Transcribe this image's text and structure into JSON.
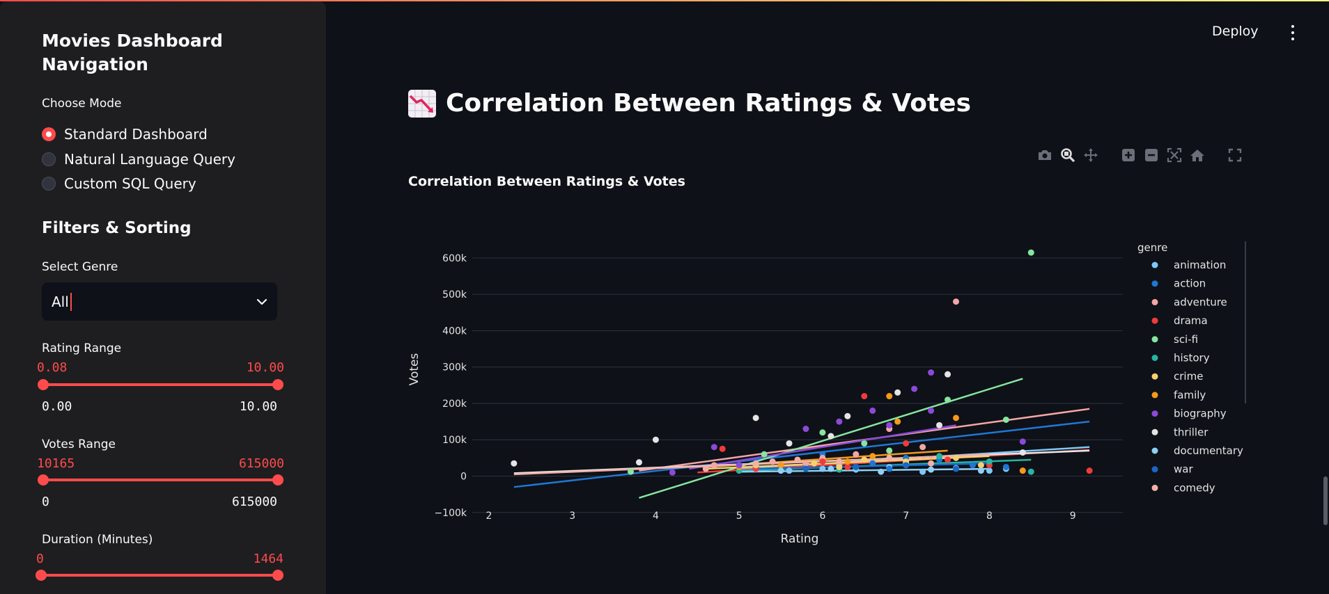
{
  "sidebar": {
    "title": "Movies Dashboard Navigation",
    "mode_label": "Choose Mode",
    "modes": [
      {
        "label": "Standard Dashboard",
        "checked": true
      },
      {
        "label": "Natural Language Query",
        "checked": false
      },
      {
        "label": "Custom SQL Query",
        "checked": false
      }
    ],
    "filters_heading": "Filters & Sorting",
    "genre_label": "Select Genre",
    "genre_value": "All",
    "rating_range": {
      "label": "Rating Range",
      "low": "0.08",
      "high": "10.00",
      "min": "0.00",
      "max": "10.00"
    },
    "votes_range": {
      "label": "Votes Range",
      "low": "10165",
      "high": "615000",
      "min": "0",
      "max": "615000"
    },
    "duration_range": {
      "label": "Duration (Minutes)",
      "low": "0",
      "high": "1464"
    }
  },
  "header": {
    "deploy_label": "Deploy"
  },
  "main": {
    "title": "Correlation Between Ratings & Votes"
  },
  "modebar": [
    "camera-icon",
    "zoom-icon",
    "pan-icon",
    "zoom-in-icon",
    "zoom-out-icon",
    "autoscale-icon",
    "reset-axes-icon",
    "fullscreen-icon"
  ],
  "chart_data": {
    "type": "scatter",
    "title": "Correlation Between Ratings & Votes",
    "xlabel": "Rating",
    "ylabel": "Votes",
    "xlim": [
      1.8,
      9.6
    ],
    "ylim": [
      -110000,
      640000
    ],
    "x_ticks": [
      2,
      3,
      4,
      5,
      6,
      7,
      8,
      9
    ],
    "y_ticks": [
      -100000,
      0,
      100000,
      200000,
      300000,
      400000,
      500000,
      600000
    ],
    "y_tick_labels": [
      "−100k",
      "0",
      "100k",
      "200k",
      "300k",
      "400k",
      "500k",
      "600k"
    ],
    "legend_title": "genre",
    "legend_position": "right",
    "trendlines": true,
    "series": [
      {
        "name": "animation",
        "color": "#7ec8f8",
        "points": [
          [
            5.6,
            15000
          ],
          [
            6.0,
            20000
          ],
          [
            6.4,
            18000
          ],
          [
            6.8,
            25000
          ],
          [
            7.2,
            12000
          ],
          [
            7.6,
            22000
          ],
          [
            8.0,
            15000
          ],
          [
            8.2,
            20000
          ],
          [
            6.2,
            30000
          ],
          [
            7.0,
            35000
          ]
        ],
        "trend": [
          [
            5.0,
            20000
          ],
          [
            9.2,
            80000
          ]
        ]
      },
      {
        "name": "action",
        "color": "#1f77d4",
        "points": [
          [
            5.2,
            25000
          ],
          [
            5.8,
            30000
          ],
          [
            6.2,
            40000
          ],
          [
            6.6,
            35000
          ],
          [
            7.0,
            50000
          ],
          [
            7.4,
            45000
          ],
          [
            6.0,
            60000
          ],
          [
            6.8,
            20000
          ],
          [
            7.8,
            30000
          ],
          [
            8.2,
            25000
          ]
        ],
        "trend": [
          [
            2.3,
            -30000
          ],
          [
            9.2,
            150000
          ]
        ]
      },
      {
        "name": "adventure",
        "color": "#f4a6a6",
        "points": [
          [
            4.7,
            30000
          ],
          [
            5.4,
            40000
          ],
          [
            6.0,
            50000
          ],
          [
            6.8,
            130000
          ],
          [
            7.6,
            480000
          ],
          [
            7.2,
            80000
          ],
          [
            6.4,
            60000
          ],
          [
            5.8,
            35000
          ]
        ],
        "trend": [
          [
            3.8,
            15000
          ],
          [
            9.2,
            185000
          ]
        ]
      },
      {
        "name": "drama",
        "color": "#ef3b3b",
        "points": [
          [
            4.8,
            75000
          ],
          [
            5.5,
            30000
          ],
          [
            6.0,
            40000
          ],
          [
            6.5,
            220000
          ],
          [
            7.0,
            90000
          ],
          [
            7.5,
            45000
          ],
          [
            8.0,
            30000
          ],
          [
            9.2,
            15000
          ],
          [
            6.3,
            25000
          ],
          [
            5.2,
            20000
          ]
        ],
        "trend": [
          [
            4.5,
            10000
          ],
          [
            9.2,
            72000
          ]
        ]
      },
      {
        "name": "sci-fi",
        "color": "#86e5a0",
        "points": [
          [
            3.7,
            12000
          ],
          [
            5.3,
            60000
          ],
          [
            6.0,
            120000
          ],
          [
            6.5,
            90000
          ],
          [
            7.5,
            210000
          ],
          [
            8.2,
            155000
          ],
          [
            8.5,
            615000
          ],
          [
            6.8,
            70000
          ]
        ],
        "trend": [
          [
            3.8,
            -60000
          ],
          [
            8.4,
            268000
          ]
        ]
      },
      {
        "name": "history",
        "color": "#26b5a2",
        "points": [
          [
            5.0,
            15000
          ],
          [
            5.8,
            20000
          ],
          [
            6.4,
            25000
          ],
          [
            7.0,
            30000
          ],
          [
            7.4,
            55000
          ],
          [
            8.0,
            40000
          ],
          [
            8.5,
            12000
          ],
          [
            6.2,
            18000
          ]
        ],
        "trend": [
          [
            5.0,
            15000
          ],
          [
            8.5,
            45000
          ]
        ]
      },
      {
        "name": "crime",
        "color": "#f8d070",
        "points": [
          [
            5.2,
            30000
          ],
          [
            5.9,
            35000
          ],
          [
            6.5,
            45000
          ],
          [
            7.0,
            40000
          ],
          [
            7.6,
            50000
          ],
          [
            7.9,
            30000
          ],
          [
            6.2,
            25000
          ]
        ],
        "trend": [
          [
            4.6,
            20000
          ],
          [
            8.0,
            55000
          ]
        ]
      },
      {
        "name": "family",
        "color": "#f59a1b",
        "points": [
          [
            5.0,
            25000
          ],
          [
            5.5,
            30000
          ],
          [
            6.3,
            40000
          ],
          [
            6.9,
            150000
          ],
          [
            6.8,
            220000
          ],
          [
            7.6,
            160000
          ],
          [
            8.4,
            15000
          ],
          [
            6.6,
            55000
          ]
        ],
        "trend": [
          [
            4.6,
            25000
          ],
          [
            7.5,
            70000
          ]
        ]
      },
      {
        "name": "biography",
        "color": "#8a4ad8",
        "points": [
          [
            4.2,
            10000
          ],
          [
            4.7,
            80000
          ],
          [
            5.0,
            30000
          ],
          [
            5.8,
            130000
          ],
          [
            6.2,
            150000
          ],
          [
            6.6,
            180000
          ],
          [
            7.1,
            240000
          ],
          [
            7.3,
            285000
          ],
          [
            7.3,
            180000
          ],
          [
            8.4,
            95000
          ],
          [
            6.8,
            140000
          ]
        ],
        "trend": [
          [
            4.4,
            20000
          ],
          [
            7.6,
            140000
          ]
        ]
      },
      {
        "name": "thriller",
        "color": "#e5e5e5",
        "points": [
          [
            2.3,
            35000
          ],
          [
            3.8,
            38000
          ],
          [
            4.0,
            100000
          ],
          [
            5.2,
            160000
          ],
          [
            5.6,
            90000
          ],
          [
            6.1,
            110000
          ],
          [
            6.3,
            165000
          ],
          [
            6.9,
            230000
          ],
          [
            7.5,
            280000
          ],
          [
            7.4,
            140000
          ],
          [
            8.4,
            65000
          ]
        ],
        "trend": [
          [
            2.3,
            8000
          ],
          [
            9.2,
            70000
          ]
        ]
      },
      {
        "name": "documentary",
        "color": "#8fd0f5",
        "points": [
          [
            5.5,
            15000
          ],
          [
            6.1,
            20000
          ],
          [
            6.7,
            12000
          ],
          [
            7.3,
            18000
          ],
          [
            7.9,
            15000
          ]
        ],
        "trend": [
          [
            5.0,
            12000
          ],
          [
            8.0,
            20000
          ]
        ]
      },
      {
        "name": "war",
        "color": "#1a66c2",
        "points": [
          [
            5.8,
            20000
          ],
          [
            6.4,
            25000
          ],
          [
            7.0,
            30000
          ],
          [
            7.6,
            20000
          ]
        ],
        "trend": [
          [
            5.2,
            20000
          ],
          [
            8.0,
            35000
          ]
        ]
      },
      {
        "name": "comedy",
        "color": "#f3b0a8",
        "points": [
          [
            4.6,
            20000
          ],
          [
            5.2,
            35000
          ],
          [
            5.7,
            45000
          ],
          [
            6.2,
            40000
          ],
          [
            6.8,
            50000
          ],
          [
            7.3,
            35000
          ]
        ],
        "trend": [
          [
            2.3,
            5000
          ],
          [
            8.0,
            60000
          ]
        ]
      }
    ]
  }
}
